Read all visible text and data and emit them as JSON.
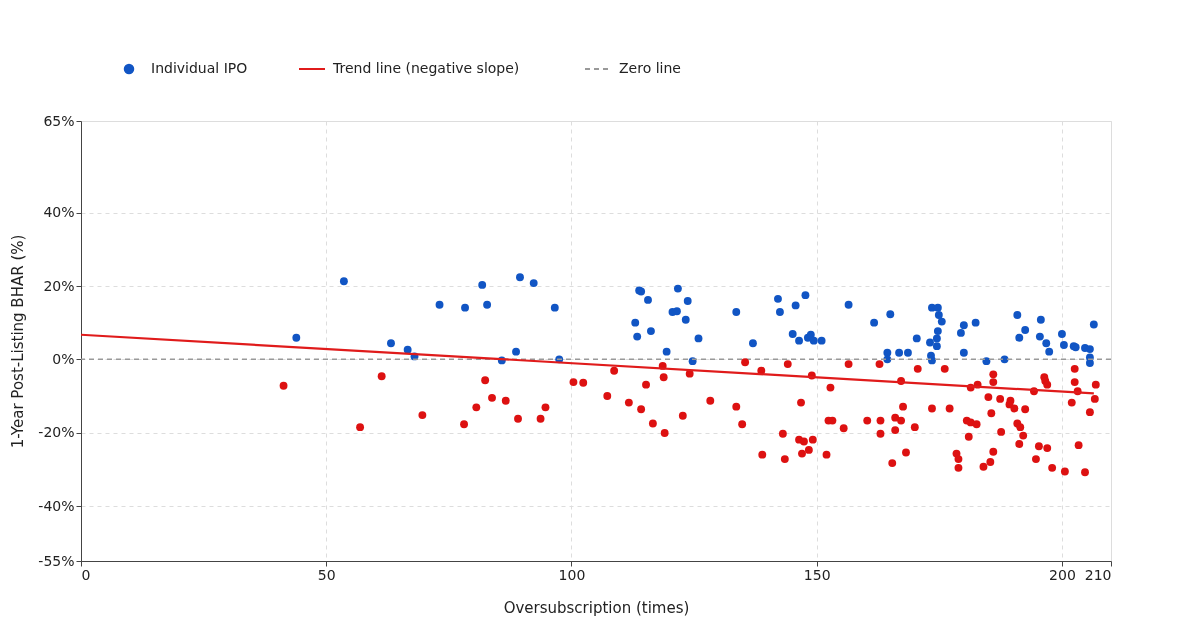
{
  "chart_data": {
    "type": "scatter",
    "xlabel": "Oversubscription (times)",
    "ylabel": "1-Year Post-Listing BHAR (%)",
    "xlim": [
      0,
      210
    ],
    "xticks": [
      0,
      50,
      100,
      150,
      200,
      210
    ],
    "ylim": [
      -55,
      65
    ],
    "yticks": [
      {
        "value": -55,
        "label": "-55%"
      },
      {
        "value": -40,
        "label": "-40%"
      },
      {
        "value": -20,
        "label": "-20%"
      },
      {
        "value": 0,
        "label": "0%"
      },
      {
        "value": 20,
        "label": "20%"
      },
      {
        "value": 40,
        "label": "40%"
      },
      {
        "value": 65,
        "label": "65%"
      }
    ],
    "grid": true,
    "legend": "top",
    "marker": "circle",
    "series": [
      {
        "name": "Individual IPO",
        "color": "#1155c4",
        "x": [
          43.9,
          53.6,
          63.2,
          66.6,
          68,
          73.1,
          78.3,
          81.8,
          82.8,
          85.8,
          88.7,
          89.5,
          92.3,
          96.6,
          97.5,
          113.8,
          114.2,
          115.6,
          113,
          113.4,
          116.2,
          119.4,
          121.7,
          120.6,
          121.5,
          123.7,
          123.3,
          125.9,
          124.7,
          133.6,
          137,
          142.1,
          142.5,
          145.7,
          147.7,
          145.1,
          146.4,
          148.2,
          148.8,
          149.4,
          151,
          156.5,
          161.7,
          165,
          164.4,
          164.4,
          166.8,
          168.6,
          170.4,
          173.1,
          173.5,
          174.7,
          174.9,
          175.5,
          174.7,
          174.5,
          174.5,
          173.3,
          173.5,
          179.4,
          180,
          182.4,
          180,
          184.6,
          188.3,
          190.9,
          192.5,
          191.3,
          195.7,
          195.5,
          196.8,
          197.4,
          200,
          200.4,
          202.4,
          202.8,
          204.7,
          205.7,
          205.7,
          205.7,
          206.5
        ],
        "values": [
          5.9,
          21.3,
          4.4,
          2.6,
          0.8,
          14.9,
          14.1,
          20.3,
          14.9,
          -0.3,
          2.1,
          22.4,
          20.8,
          14.1,
          0,
          18.8,
          18.5,
          16.2,
          10,
          6.2,
          7.7,
          2.1,
          19.3,
          12.9,
          13.1,
          15.9,
          10.8,
          5.7,
          -0.5,
          12.9,
          4.4,
          16.5,
          12.9,
          14.7,
          17.5,
          6.9,
          5.1,
          5.9,
          6.7,
          5.1,
          5.1,
          14.9,
          10,
          12.3,
          1.8,
          0,
          1.8,
          1.8,
          5.7,
          4.6,
          14.1,
          14.1,
          12.1,
          10.3,
          7.7,
          5.7,
          3.6,
          1,
          -0.3,
          7.2,
          9.3,
          10,
          1.8,
          -0.5,
          0,
          12.1,
          8,
          5.9,
          10.8,
          6.2,
          4.4,
          2.1,
          6.9,
          3.9,
          3.6,
          3.3,
          3.1,
          2.8,
          0.5,
          -1,
          9.5
        ]
      },
      {
        "color": "#dd1111",
        "x": [
          41.3,
          56.9,
          61.3,
          69.6,
          78.1,
          80.6,
          82.4,
          83.8,
          86.6,
          89.1,
          93.7,
          94.7,
          100.4,
          102.4,
          107.3,
          108.7,
          111.7,
          114.2,
          115.2,
          116.6,
          118.6,
          118.8,
          119,
          122.7,
          124.1,
          128.3,
          133.6,
          134.8,
          135.4,
          138.7,
          143.1,
          144.1,
          146.8,
          149,
          152.8,
          152.4,
          153.2,
          138.9,
          143.5,
          146.4,
          147.4,
          149.2,
          148.4,
          147,
          152,
          156.5,
          155.5,
          160.3,
          163,
          162.8,
          163,
          166,
          167.2,
          166,
          167.6,
          167.2,
          170,
          170.6,
          173.5,
          176.1,
          177.1,
          180.6,
          181.4,
          182.6,
          181.4,
          182.8,
          186,
          186,
          185,
          187.4,
          185.6,
          189.5,
          189.3,
          190.3,
          192.5,
          187.6,
          190.9,
          191.5,
          194.3,
          196.4,
          196.6,
          197,
          202.6,
          202.6,
          203.2,
          202,
          206.9,
          206.7,
          205.7,
          165.4,
          168.2,
          178.5,
          178.9,
          178.9,
          181,
          192.1,
          191.3,
          186,
          185.4,
          184,
          195.3,
          197,
          194.7,
          198,
          200.6,
          203.4,
          204.7
        ],
        "values": [
          -7.2,
          -18.5,
          -4.6,
          -15.2,
          -17.7,
          -13.1,
          -5.7,
          -10.5,
          -11.3,
          -16.2,
          -16.2,
          -13.1,
          -6.2,
          -6.4,
          -10,
          -3.1,
          -11.8,
          -13.6,
          -6.9,
          -17.5,
          -1.8,
          -4.9,
          -20.1,
          -15.4,
          -3.9,
          -11.3,
          -12.9,
          -17.7,
          -0.8,
          -3.1,
          -20.3,
          -1.3,
          -11.8,
          -4.4,
          -7.7,
          -16.7,
          -16.7,
          -26,
          -27.2,
          -21.9,
          -22.4,
          -21.9,
          -24.7,
          -25.7,
          -26,
          -1.3,
          -18.8,
          -16.7,
          -16.7,
          -1.3,
          -20.3,
          -15.9,
          -16.7,
          -19.3,
          -12.9,
          -5.9,
          -18.5,
          -2.6,
          -13.4,
          -2.6,
          -13.4,
          -16.7,
          -17.2,
          -17.7,
          -7.7,
          -6.9,
          -4.1,
          -6.2,
          -10.3,
          -10.8,
          -14.7,
          -11.3,
          -12.3,
          -13.4,
          -13.6,
          -19.8,
          -17.5,
          -18.5,
          -8.7,
          -4.9,
          -5.9,
          -6.9,
          -2.6,
          -6.2,
          -8.7,
          -11.8,
          -6.9,
          -10.8,
          -14.4,
          -28.3,
          -25.4,
          -25.7,
          -27.2,
          -29.6,
          -21.1,
          -20.8,
          -23.1,
          -25.2,
          -28,
          -29.3,
          -23.7,
          -24.2,
          -27.2,
          -29.6,
          -30.6,
          -23.4,
          -30.8
        ]
      },
      {
        "name": "Trend line (negative slope)",
        "type": "line",
        "color": "#e01b1b",
        "x": [
          0,
          206.5
        ],
        "values": [
          6.7,
          -9.3
        ],
        "line_style": "solid",
        "marker": "none"
      }
    ],
    "ref_lines": [
      {
        "axis": "y",
        "value": 0,
        "label": "Zero line",
        "color": "#999999",
        "line_style": "dashed"
      }
    ]
  }
}
